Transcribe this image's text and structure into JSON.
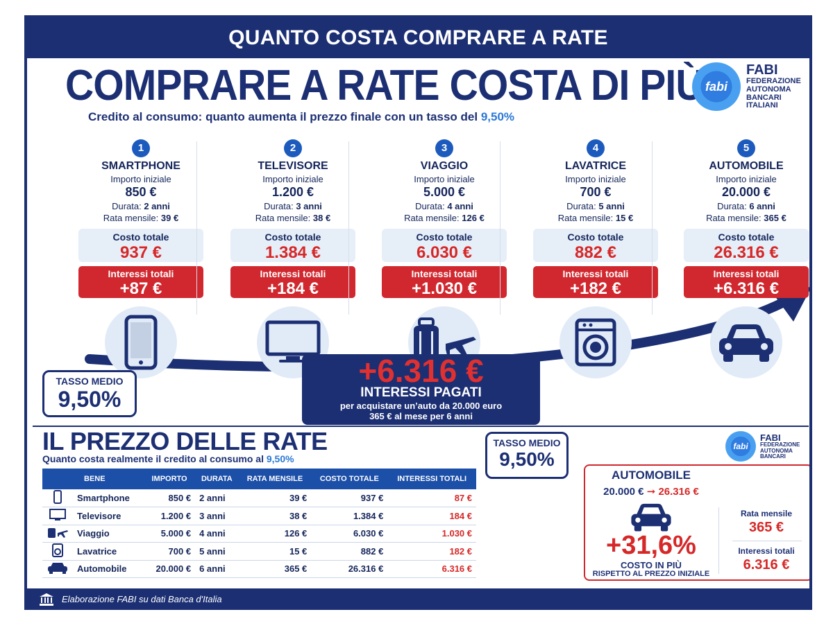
{
  "header": {
    "title": "QUANTO COSTA COMPRARE A RATE"
  },
  "hero": {
    "title": "COMPRARE A RATE COSTA DI PIÙ",
    "subtitle_prefix": "Credito al consumo: quanto aumenta il prezzo finale con un tasso del",
    "subtitle_rate": "9,50%"
  },
  "logo": {
    "mark": "fabi",
    "name": "FABI",
    "line1": "FEDERAZIONE",
    "line2": "AUTONOMA",
    "line3": "BANCARI",
    "line4": "ITALIANI"
  },
  "labels": {
    "importo_iniziale": "Importo iniziale",
    "durata": "Durata:",
    "rata_mensile": "Rata mensile:",
    "costo_totale": "Costo totale",
    "interessi_totali": "Interessi totali"
  },
  "products": [
    {
      "num": "1",
      "name": "SMARTPHONE",
      "amount": "850 €",
      "duration": "2 anni",
      "rate": "39 €",
      "total": "937 €",
      "interest": "+87 €",
      "icon": "smartphone-icon"
    },
    {
      "num": "2",
      "name": "TELEVISORE",
      "amount": "1.200 €",
      "duration": "3 anni",
      "rate": "38 €",
      "total": "1.384 €",
      "interest": "+184 €",
      "icon": "television-icon"
    },
    {
      "num": "3",
      "name": "VIAGGIO",
      "amount": "5.000 €",
      "duration": "4 anni",
      "rate": "126 €",
      "total": "6.030 €",
      "interest": "+1.030 €",
      "icon": "suitcase-airplane-icon"
    },
    {
      "num": "4",
      "name": "LAVATRICE",
      "amount": "700 €",
      "duration": "5 anni",
      "rate": "15 €",
      "total": "882 €",
      "interest": "+182 €",
      "icon": "washing-machine-icon"
    },
    {
      "num": "5",
      "name": "AUTOMOBILE",
      "amount": "20.000 €",
      "duration": "6 anni",
      "rate": "365 €",
      "total": "26.316 €",
      "interest": "+6.316 €",
      "icon": "car-icon"
    }
  ],
  "tasso": {
    "label": "TASSO MEDIO",
    "value": "9,50%"
  },
  "highlight": {
    "amount": "+6.316 €",
    "title": "INTERESSI PAGATI",
    "line1": "per acquistare un’auto da 20.000 euro",
    "line2": "365 € al mese per 6 anni"
  },
  "section2": {
    "title": "IL PREZZO DELLE RATE",
    "subtitle_prefix": "Quanto costa realmente il credito al consumo al",
    "subtitle_rate": "9,50%"
  },
  "table": {
    "headers": [
      "BENE",
      "IMPORTO",
      "DURATA",
      "RATA MENSILE",
      "COSTO TOTALE",
      "INTERESSI TOTALI"
    ],
    "rows": [
      {
        "icon": "smartphone-icon",
        "name": "Smartphone",
        "importo": "850 €",
        "durata": "2 anni",
        "rata": "39 €",
        "costo": "937 €",
        "interessi": "87 €"
      },
      {
        "icon": "television-icon",
        "name": "Televisore",
        "importo": "1.200 €",
        "durata": "3 anni",
        "rata": "38 €",
        "costo": "1.384 €",
        "interessi": "184 €"
      },
      {
        "icon": "suitcase-airplane-icon",
        "name": "Viaggio",
        "importo": "5.000 €",
        "durata": "4 anni",
        "rata": "126 €",
        "costo": "6.030 €",
        "interessi": "1.030 €"
      },
      {
        "icon": "washing-machine-icon",
        "name": "Lavatrice",
        "importo": "700 €",
        "durata": "5 anni",
        "rata": "15 €",
        "costo": "882 €",
        "interessi": "182 €"
      },
      {
        "icon": "car-icon",
        "name": "Automobile",
        "importo": "20.000 €",
        "durata": "6 anni",
        "rata": "365 €",
        "costo": "26.316 €",
        "interessi": "6.316 €"
      }
    ]
  },
  "logo_small": {
    "mark": "fabi",
    "name": "FABI",
    "line1": "FEDERAZIONE",
    "line2": "AUTONOMA",
    "line3": "BANCARI"
  },
  "auto_card": {
    "title": "AUTOMOBILE",
    "from": "20.000 €",
    "to": "26.316 €",
    "percent": "+31,6%",
    "line1": "COSTO IN PIÙ",
    "line2": "RISPETTO AL PREZZO INIZIALE",
    "rata_label": "Rata mensile",
    "rata_value": "365 €",
    "interessi_label": "Interessi totali",
    "interessi_value": "6.316 €"
  },
  "footer": {
    "text": "Elaborazione FABI su dati Banca d'Italia",
    "icon": "bank-icon"
  },
  "colors": {
    "navy": "#1c2f73",
    "red": "#d0282e",
    "accent_blue": "#2b78d6"
  }
}
